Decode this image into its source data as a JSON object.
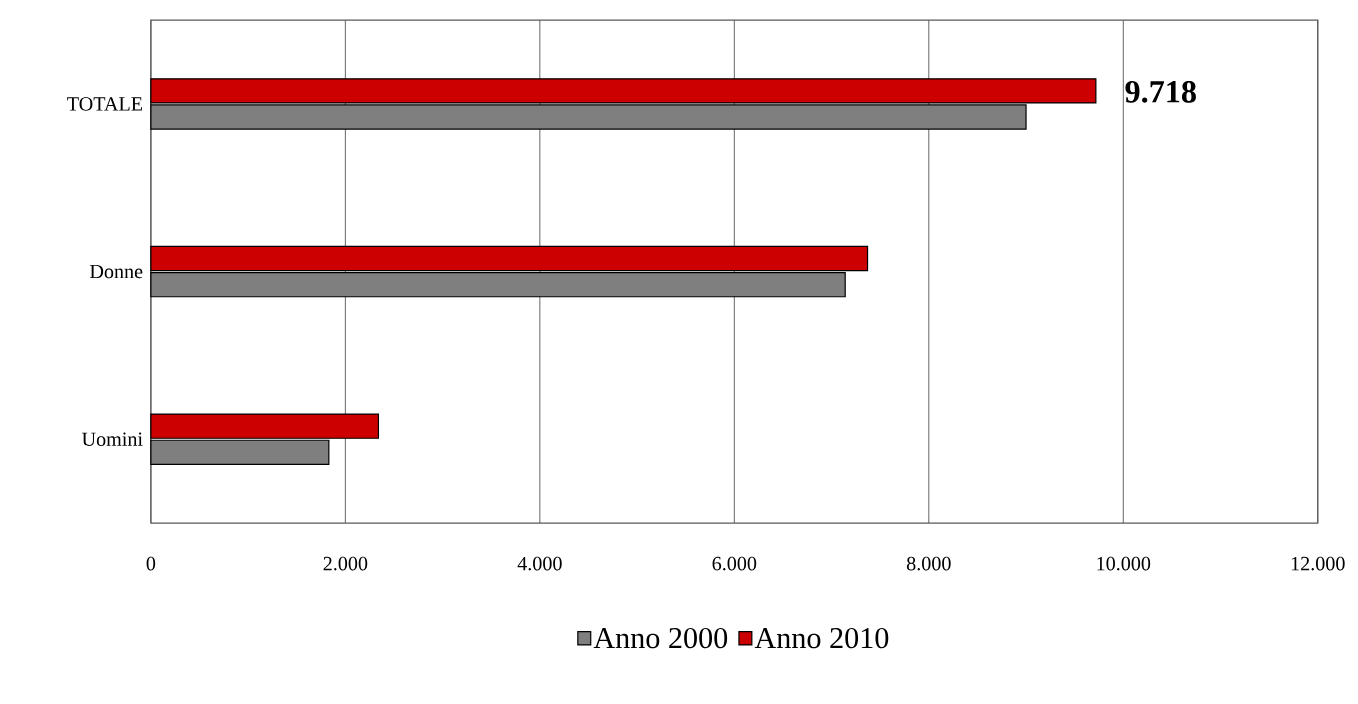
{
  "chart_data": {
    "type": "bar",
    "orientation": "horizontal",
    "categories": [
      "TOTALE",
      "Donne",
      "Uomini"
    ],
    "series": [
      {
        "name": "Anno 2000",
        "color": "#7f7f7f",
        "values": [
          9000,
          7140,
          1830
        ]
      },
      {
        "name": "Anno 2010",
        "color": "#cc0000",
        "values": [
          9718,
          7370,
          2340
        ],
        "value_labels": [
          "9.718",
          null,
          null
        ]
      }
    ],
    "xlim": [
      0,
      12000
    ],
    "xticks": [
      0,
      {
        "value": 2000,
        "label": "2.000"
      },
      {
        "value": 4000,
        "label": "4.000"
      },
      {
        "value": 6000,
        "label": "6.000"
      },
      {
        "value": 8000,
        "label": "8.000"
      },
      {
        "value": 10000,
        "label": "10.000"
      },
      {
        "value": 12000,
        "label": "12.000"
      }
    ],
    "grid": "x",
    "legend": "bottom"
  }
}
